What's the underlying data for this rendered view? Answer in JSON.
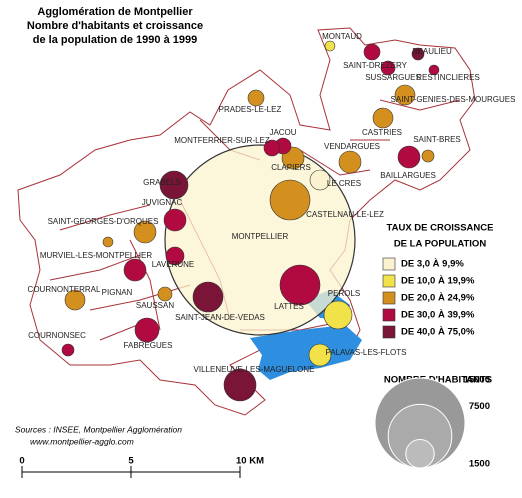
{
  "title": [
    "Agglomération de Montpellier",
    "Nombre d'habitants et croissance",
    "de la population de 1990 à 1999"
  ],
  "communes": [
    "MONTAUD",
    "BEAULIEU",
    "SAINT-DREZERY",
    "SUSSARGUES",
    "RESTINCLIERES",
    "SAINT-GENIES-DES-MOURGUES",
    "PRADES-LE-LEZ",
    "CASTRIES",
    "SAINT-BRES",
    "JACOU",
    "MONTFERRIER-SUR-LEZ",
    "VENDARGUES",
    "CLAPIERS",
    "BAILLARGUES",
    "LE CRES",
    "GRABELS",
    "CASTELNAU-LE-LEZ",
    "JUVIGNAC",
    "SAINT-GEORGES-D'ORQUES",
    "MONTPELLIER",
    "MURVIEL-LES-MONTPELLIER",
    "LAVERUNE",
    "COURNONTERRAL",
    "PIGNAN",
    "SAUSSAN",
    "LATTES",
    "PEROLS",
    "SAINT-JEAN-DE-VEDAS",
    "COURNONSEC",
    "FABREGUES",
    "PALAVAS-LES-FLOTS",
    "VILLENEUVE-LES-MAGUELONE"
  ],
  "legend": {
    "growth_title": [
      "TAUX DE CROISSANCE",
      "DE LA POPULATION"
    ],
    "classes": [
      {
        "label": "DE  3,0 À 9,9%",
        "color": "#fbf3cf"
      },
      {
        "label": "DE 10,0 À 19,9%",
        "color": "#f2e24a"
      },
      {
        "label": "DE 20,0 À 24,9%",
        "color": "#d4901e"
      },
      {
        "label": "DE 30,0 À 39,9%",
        "color": "#b00a40"
      },
      {
        "label": "DE 40,0 À 75,0%",
        "color": "#7a1537"
      }
    ],
    "size_title": "NOMBRE D'HABITANTS",
    "sizes": [
      15000,
      7500,
      1500
    ]
  },
  "sources": [
    "Sources : INSEE, Montpellier Agglomération",
    "www.montpellier-agglo.com"
  ],
  "scale": [
    "0",
    "5",
    "10 KM"
  ]
}
